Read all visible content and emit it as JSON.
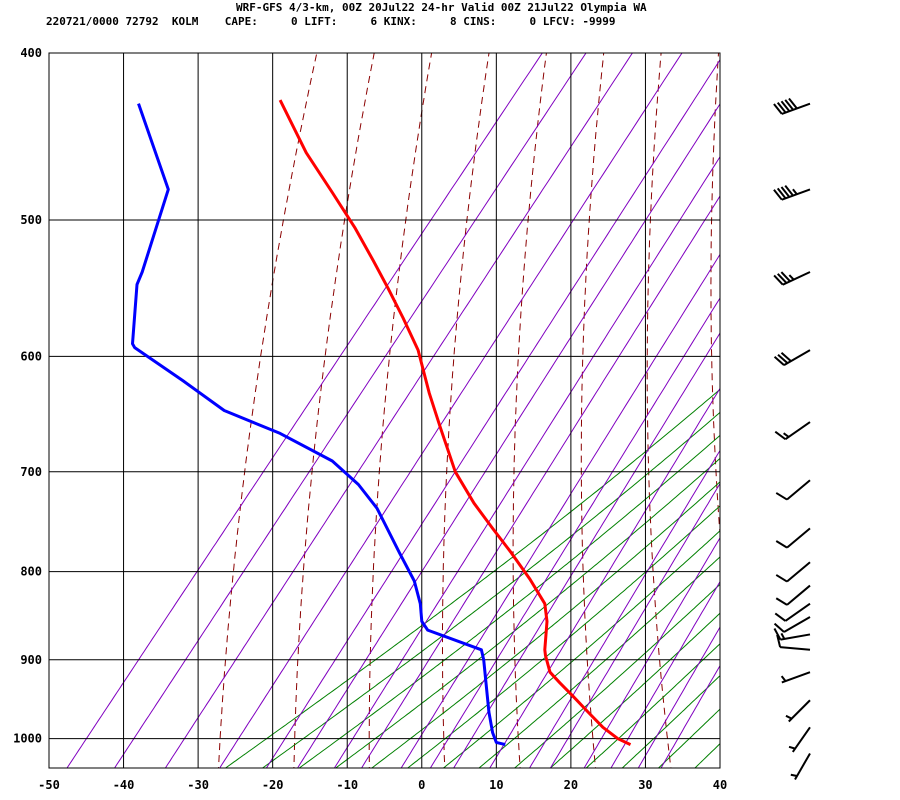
{
  "header": {
    "line1": "WRF-GFS 4/3-km, 00Z 20Jul22 24-hr Valid 00Z 21Jul22 Olympia WA",
    "line2": "220721/0000 72792  KOLM    CAPE:     0 LIFT:     6 KINX:     8 CINS:     0 LFCV: -9999"
  },
  "chart_data": {
    "type": "line",
    "title": "WRF-GFS 4/3-km, 00Z 20Jul22 24-hr Valid 00Z 21Jul22 Olympia WA",
    "xlabel": "",
    "ylabel": "",
    "xlim": [
      -50,
      40
    ],
    "ylim": [
      1040,
      400
    ],
    "yscale": "log",
    "x_ticks": [
      "-50",
      "-40",
      "-30",
      "-20",
      "-10",
      "0",
      "10",
      "20",
      "30",
      "40"
    ],
    "y_ticks": [
      "400",
      "500",
      "600",
      "700",
      "800",
      "900",
      "1000"
    ],
    "grid": true,
    "colors": {
      "temperature": "#ff0000",
      "dewpoint": "#0000ff",
      "dry_adiabat": "#8b0000",
      "moist_adiabat": "#008000",
      "mixing_ratio": "#8000c0",
      "grid": "#000000"
    },
    "series": [
      {
        "key": "temperature",
        "points": [
          [
            28.0,
            1008
          ],
          [
            26.3,
            1000
          ],
          [
            24.3,
            985
          ],
          [
            22.3,
            965
          ],
          [
            20.3,
            945
          ],
          [
            18.5,
            928
          ],
          [
            17.2,
            915
          ],
          [
            16.6,
            895
          ],
          [
            16.5,
            888
          ],
          [
            16.8,
            855
          ],
          [
            16.5,
            835
          ],
          [
            14.5,
            808
          ],
          [
            12.0,
            780
          ],
          [
            9.5,
            755
          ],
          [
            7.0,
            730
          ],
          [
            4.5,
            700
          ],
          [
            2.5,
            660
          ],
          [
            1.0,
            630
          ],
          [
            -0.5,
            595
          ],
          [
            -2.5,
            570
          ],
          [
            -4.5,
            548
          ],
          [
            -6.5,
            528
          ],
          [
            -9.0,
            505
          ],
          [
            -12.0,
            482
          ],
          [
            -15.5,
            457
          ],
          [
            -19.0,
            426
          ]
        ]
      },
      {
        "key": "dewpoint",
        "points": [
          [
            11.2,
            1008
          ],
          [
            10.0,
            1005
          ],
          [
            9.5,
            992
          ],
          [
            9.0,
            965
          ],
          [
            8.3,
            900
          ],
          [
            8.0,
            888
          ],
          [
            0.8,
            865
          ],
          [
            0,
            855
          ],
          [
            -0.2,
            835
          ],
          [
            -1,
            810
          ],
          [
            -3,
            780
          ],
          [
            -6,
            735
          ],
          [
            -8.5,
            712
          ],
          [
            -12,
            690
          ],
          [
            -19,
            665
          ],
          [
            -26.5,
            645
          ],
          [
            -32,
            620
          ],
          [
            -38.5,
            593
          ],
          [
            -38.8,
            590
          ],
          [
            -38.2,
            545
          ],
          [
            -37.5,
            536
          ],
          [
            -34,
            480
          ],
          [
            -38,
            428
          ]
        ]
      }
    ],
    "winds": [
      {
        "p": 428,
        "dir": 250,
        "spd": 50
      },
      {
        "p": 480,
        "dir": 250,
        "spd": 45
      },
      {
        "p": 536,
        "dir": 245,
        "spd": 35
      },
      {
        "p": 595,
        "dir": 240,
        "spd": 30
      },
      {
        "p": 655,
        "dir": 235,
        "spd": 15
      },
      {
        "p": 708,
        "dir": 230,
        "spd": 10
      },
      {
        "p": 755,
        "dir": 230,
        "spd": 10
      },
      {
        "p": 790,
        "dir": 230,
        "spd": 10
      },
      {
        "p": 815,
        "dir": 230,
        "spd": 10
      },
      {
        "p": 835,
        "dir": 235,
        "spd": 10
      },
      {
        "p": 850,
        "dir": 240,
        "spd": 10
      },
      {
        "p": 870,
        "dir": 260,
        "spd": 15
      },
      {
        "p": 888,
        "dir": 275,
        "spd": 10
      },
      {
        "p": 915,
        "dir": 250,
        "spd": 5
      },
      {
        "p": 950,
        "dir": 225,
        "spd": 5
      },
      {
        "p": 985,
        "dir": 215,
        "spd": 5
      },
      {
        "p": 1020,
        "dir": 210,
        "spd": 5
      }
    ]
  }
}
